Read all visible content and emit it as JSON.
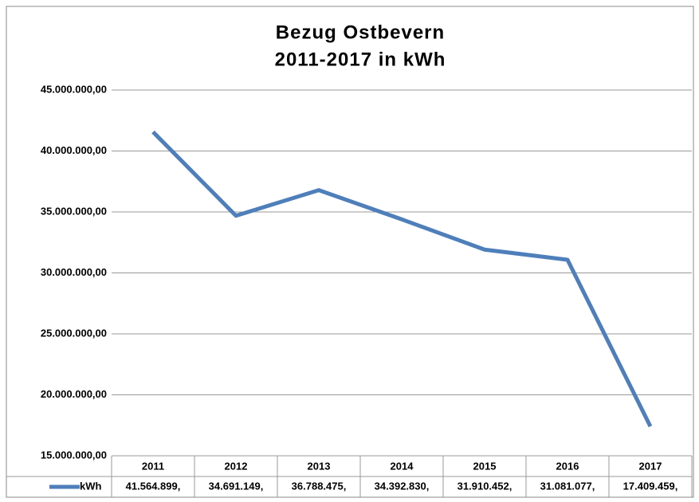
{
  "chart_data": {
    "type": "line",
    "title": [
      "Bezug Ostbevern",
      "2011-2017 in kWh"
    ],
    "categories": [
      "2011",
      "2012",
      "2013",
      "2014",
      "2015",
      "2016",
      "2017"
    ],
    "series": [
      {
        "name": "kWh",
        "color": "#4f7fbb",
        "values": [
          41564899,
          34691149,
          36788475,
          34392830,
          31910452,
          31081077,
          17409459
        ],
        "value_labels": [
          "41.564.899,",
          "34.691.149,",
          "36.788.475,",
          "34.392.830,",
          "31.910.452,",
          "31.081.077,",
          "17.409.459,"
        ]
      }
    ],
    "ylim": [
      15000000,
      45000000
    ],
    "yticks": [
      {
        "value": 15000000,
        "label": "15.000.000,00"
      },
      {
        "value": 20000000,
        "label": "20.000.000,00"
      },
      {
        "value": 25000000,
        "label": "25.000.000,00"
      },
      {
        "value": 30000000,
        "label": "30.000.000,00"
      },
      {
        "value": 35000000,
        "label": "35.000.000,00"
      },
      {
        "value": 40000000,
        "label": "40.000.000,00"
      },
      {
        "value": 45000000,
        "label": "45.000.000,00"
      }
    ],
    "grid": true,
    "data_table": true
  }
}
